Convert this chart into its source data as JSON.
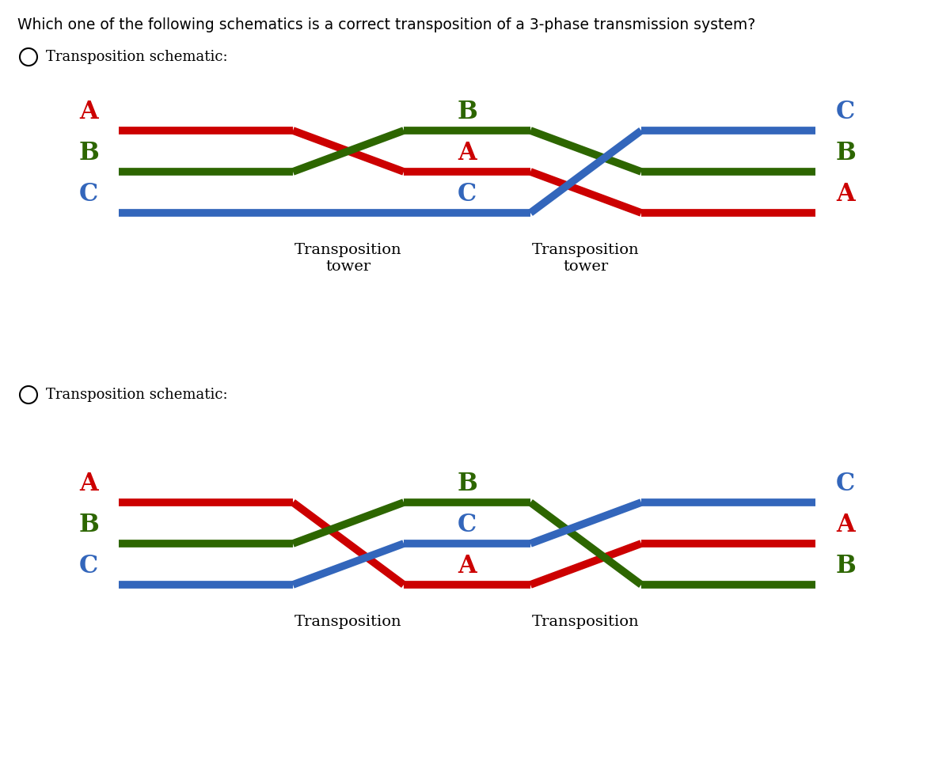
{
  "title": "Which one of the following schematics is a correct transposition of a 3-phase transmission system?",
  "bg_color": "#ffffff",
  "red": "#cc0000",
  "green": "#2d6600",
  "blue": "#3366bb",
  "lw": 7,
  "figw": 12.0,
  "figh": 9.77,
  "option1": {
    "label": "Transposition schematic:",
    "seg1_labels": [
      [
        "A",
        "red"
      ],
      [
        "B",
        "green"
      ],
      [
        "C",
        "blue"
      ]
    ],
    "seg2_labels": [
      [
        "B",
        "green"
      ],
      [
        "A",
        "red"
      ],
      [
        "C",
        "blue"
      ]
    ],
    "seg3_labels": [
      [
        "C",
        "blue"
      ],
      [
        "B",
        "green"
      ],
      [
        "A",
        "red"
      ]
    ],
    "tower1_label": "Transposition\ntower",
    "tower2_label": "Transposition\ntower"
  },
  "option2": {
    "label": "Transposition schematic:",
    "seg1_labels": [
      [
        "A",
        "red"
      ],
      [
        "B",
        "green"
      ],
      [
        "C",
        "blue"
      ]
    ],
    "seg2_labels": [
      [
        "B",
        "green"
      ],
      [
        "C",
        "blue"
      ],
      [
        "A",
        "red"
      ]
    ],
    "seg3_labels": [
      [
        "C",
        "blue"
      ],
      [
        "A",
        "red"
      ],
      [
        "B",
        "green"
      ]
    ],
    "tower1_label": "Transposition",
    "tower2_label": "Transposition"
  }
}
